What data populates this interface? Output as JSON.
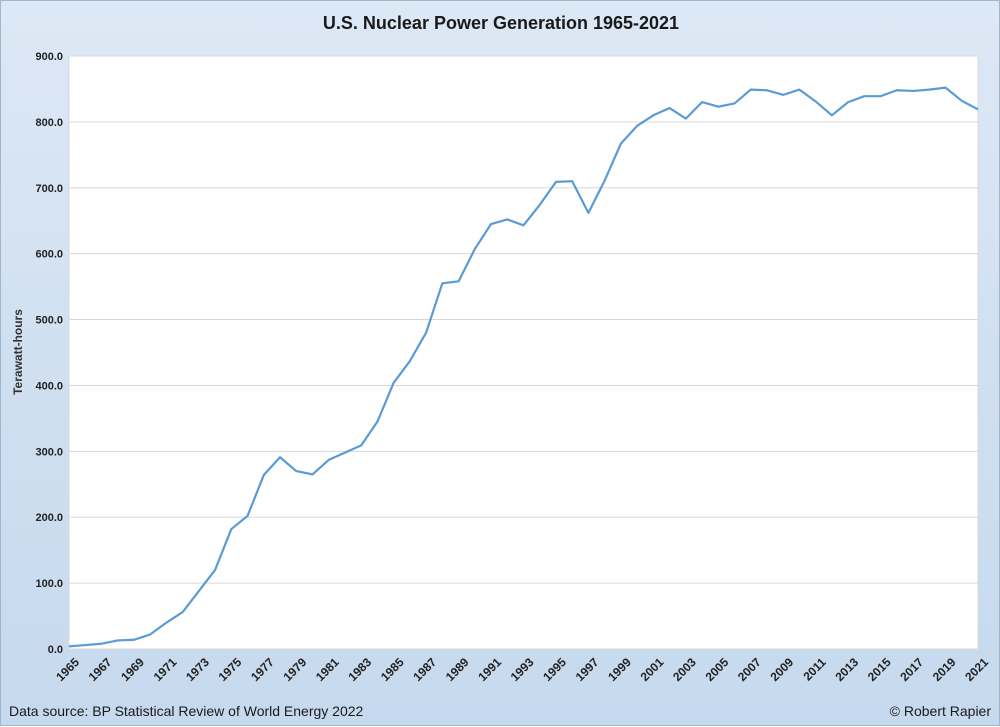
{
  "footer": {
    "source": "Data source: BP Statistical Review of World Energy 2022",
    "credit": "© Robert Rapier"
  },
  "colors": {
    "line": "#5b9bd5",
    "plot_background": "#ffffff",
    "gridline": "#d9d9d9"
  },
  "chart_data": {
    "type": "line",
    "title": "U.S. Nuclear Power Generation 1965-2021",
    "xlabel": "",
    "ylabel": "Terawatt-hours",
    "ylim": [
      0,
      900
    ],
    "yticks": [
      "0.0",
      "100.0",
      "200.0",
      "300.0",
      "400.0",
      "500.0",
      "600.0",
      "700.0",
      "800.0",
      "900.0"
    ],
    "xtick_labels": [
      "1965",
      "1967",
      "1969",
      "1971",
      "1973",
      "1975",
      "1977",
      "1979",
      "1981",
      "1983",
      "1985",
      "1987",
      "1989",
      "1991",
      "1993",
      "1995",
      "1997",
      "1999",
      "2001",
      "2003",
      "2005",
      "2007",
      "2009",
      "2011",
      "2013",
      "2015",
      "2017",
      "2019",
      "2021"
    ],
    "grid": true,
    "legend": "none",
    "x": [
      1965,
      1966,
      1967,
      1968,
      1969,
      1970,
      1971,
      1972,
      1973,
      1974,
      1975,
      1976,
      1977,
      1978,
      1979,
      1980,
      1981,
      1982,
      1983,
      1984,
      1985,
      1986,
      1987,
      1988,
      1989,
      1990,
      1991,
      1992,
      1993,
      1994,
      1995,
      1996,
      1997,
      1998,
      1999,
      2000,
      2001,
      2002,
      2003,
      2004,
      2005,
      2006,
      2007,
      2008,
      2009,
      2010,
      2011,
      2012,
      2013,
      2014,
      2015,
      2016,
      2017,
      2018,
      2019,
      2020,
      2021
    ],
    "series": [
      {
        "values": [
          4,
          6,
          8,
          13,
          14,
          22,
          40,
          56,
          88,
          120,
          182,
          202,
          264,
          291,
          270,
          265,
          287,
          298,
          309,
          345,
          404,
          437,
          480,
          555,
          558,
          607,
          645,
          652,
          643,
          674,
          709,
          710,
          662,
          711,
          767,
          794,
          810,
          821,
          805,
          830,
          823,
          828,
          849,
          848,
          841,
          849,
          831,
          810,
          830,
          839,
          839,
          848,
          847,
          849,
          852,
          832,
          819
        ]
      }
    ]
  }
}
